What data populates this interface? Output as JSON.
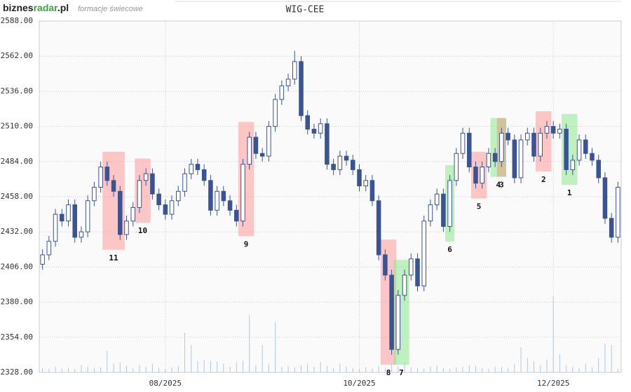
{
  "header": {
    "brand_parts": [
      "biznes",
      "radar",
      ".pl"
    ],
    "subtitle": "formacje świecowe"
  },
  "chart_data": {
    "type": "candlestick",
    "title": "WIG-CEE",
    "open": [
      2408,
      2415,
      2425,
      2445,
      2440,
      2452,
      2428,
      2432,
      2455,
      2465,
      2480,
      2470,
      2462,
      2430,
      2440,
      2450,
      2470,
      2475,
      2460,
      2452,
      2445,
      2455,
      2462,
      2475,
      2482,
      2478,
      2470,
      2448,
      2462,
      2455,
      2448,
      2440,
      2482,
      2502,
      2490,
      2488,
      2510,
      2530,
      2540,
      2545,
      2558,
      2518,
      2508,
      2505,
      2512,
      2482,
      2478,
      2488,
      2485,
      2478,
      2466,
      2470,
      2455,
      2415,
      2400,
      2345,
      2385,
      2400,
      2412,
      2392,
      2440,
      2452,
      2460,
      2436,
      2470,
      2490,
      2505,
      2480,
      2468,
      2480,
      2490,
      2484,
      2505,
      2500,
      2472,
      2500,
      2505,
      2488,
      2505,
      2510,
      2505,
      2508,
      2478,
      2485,
      2500,
      2490,
      2485,
      2472,
      2442,
      2428
    ],
    "high": [
      2419,
      2429,
      2449,
      2449,
      2456,
      2456,
      2436,
      2459,
      2469,
      2484,
      2484,
      2474,
      2466,
      2444,
      2454,
      2474,
      2479,
      2479,
      2464,
      2456,
      2459,
      2466,
      2479,
      2486,
      2486,
      2482,
      2474,
      2466,
      2466,
      2459,
      2452,
      2486,
      2506,
      2506,
      2494,
      2514,
      2534,
      2544,
      2549,
      2566,
      2562,
      2522,
      2512,
      2516,
      2516,
      2486,
      2492,
      2492,
      2489,
      2482,
      2474,
      2474,
      2459,
      2419,
      2404,
      2389,
      2404,
      2416,
      2416,
      2444,
      2456,
      2464,
      2464,
      2474,
      2494,
      2509,
      2509,
      2484,
      2484,
      2494,
      2494,
      2509,
      2509,
      2504,
      2504,
      2509,
      2509,
      2509,
      2514,
      2514,
      2512,
      2512,
      2489,
      2504,
      2504,
      2494,
      2489,
      2476,
      2446,
      2469
    ],
    "low": [
      2404,
      2411,
      2421,
      2436,
      2436,
      2424,
      2424,
      2428,
      2451,
      2461,
      2466,
      2458,
      2426,
      2426,
      2436,
      2446,
      2466,
      2456,
      2448,
      2441,
      2441,
      2451,
      2458,
      2471,
      2474,
      2466,
      2444,
      2444,
      2451,
      2444,
      2436,
      2436,
      2478,
      2486,
      2484,
      2484,
      2506,
      2526,
      2536,
      2541,
      2514,
      2504,
      2501,
      2501,
      2478,
      2474,
      2474,
      2481,
      2474,
      2462,
      2462,
      2451,
      2411,
      2396,
      2341,
      2341,
      2381,
      2396,
      2388,
      2388,
      2436,
      2448,
      2432,
      2432,
      2466,
      2486,
      2476,
      2464,
      2464,
      2476,
      2480,
      2480,
      2496,
      2468,
      2468,
      2496,
      2484,
      2484,
      2501,
      2501,
      2501,
      2474,
      2474,
      2481,
      2486,
      2481,
      2468,
      2438,
      2424,
      2424
    ],
    "close": [
      2415,
      2425,
      2445,
      2440,
      2452,
      2428,
      2432,
      2455,
      2465,
      2480,
      2470,
      2462,
      2430,
      2440,
      2450,
      2470,
      2475,
      2460,
      2452,
      2445,
      2455,
      2462,
      2475,
      2482,
      2478,
      2470,
      2448,
      2462,
      2455,
      2448,
      2440,
      2482,
      2502,
      2490,
      2488,
      2510,
      2530,
      2540,
      2545,
      2558,
      2518,
      2508,
      2505,
      2512,
      2482,
      2478,
      2488,
      2485,
      2478,
      2466,
      2470,
      2455,
      2415,
      2400,
      2345,
      2385,
      2400,
      2412,
      2392,
      2440,
      2452,
      2460,
      2436,
      2470,
      2490,
      2505,
      2480,
      2468,
      2480,
      2490,
      2484,
      2505,
      2500,
      2472,
      2500,
      2505,
      2488,
      2505,
      2510,
      2505,
      2508,
      2478,
      2485,
      2500,
      2490,
      2485,
      2472,
      2442,
      2428,
      2465
    ],
    "volume": [
      6,
      5,
      8,
      5,
      6,
      5,
      10,
      8,
      6,
      7,
      30,
      12,
      14,
      9,
      6,
      10,
      8,
      12,
      6,
      5,
      7,
      9,
      55,
      38,
      16,
      17,
      16,
      15,
      12,
      8,
      14,
      16,
      80,
      10,
      38,
      12,
      70,
      8,
      9,
      7,
      10,
      12,
      8,
      14,
      9,
      6,
      12,
      8,
      6,
      5,
      7,
      5,
      9,
      6,
      12,
      8,
      14,
      7,
      6,
      5,
      8,
      9,
      6,
      5,
      7,
      8,
      10,
      9,
      6,
      5,
      8,
      7,
      6,
      12,
      35,
      20,
      15,
      10,
      18,
      105,
      25,
      10,
      8,
      6,
      12,
      7,
      20,
      40,
      38,
      5
    ],
    "up_color": "#ffffff",
    "down_color": "#3a5493",
    "volume_color": "#a9c9ea",
    "xlim": [
      -0.5,
      89.5
    ],
    "xticks": [
      {
        "value": 19,
        "label": "08/2025"
      },
      {
        "value": 49,
        "label": "10/2025"
      },
      {
        "value": 79,
        "label": "12/2025"
      }
    ],
    "ylim": [
      2328,
      2588
    ],
    "yticks": [
      {
        "value": 2328,
        "label": "2328.00"
      },
      {
        "value": 2354,
        "label": "2354.00"
      },
      {
        "value": 2380,
        "label": "2380.00"
      },
      {
        "value": 2406,
        "label": "2406.00"
      },
      {
        "value": 2432,
        "label": "2432.00"
      },
      {
        "value": 2458,
        "label": "2458.00"
      },
      {
        "value": 2484,
        "label": "2484.00"
      },
      {
        "value": 2510,
        "label": "2510.00"
      },
      {
        "value": 2536,
        "label": "2536.00"
      },
      {
        "value": 2562,
        "label": "2562.00"
      },
      {
        "value": 2588,
        "label": "2588.00"
      }
    ],
    "grid": true,
    "patterns": [
      {
        "label": "11",
        "from": 10,
        "to": 12,
        "color": "#ff9a9a"
      },
      {
        "label": "10",
        "from": 15,
        "to": 16,
        "color": "#ff9a9a"
      },
      {
        "label": "9",
        "from": 31,
        "to": 32,
        "color": "#ff9a9a"
      },
      {
        "label": "8",
        "from": 53,
        "to": 54,
        "color": "#ff9a9a"
      },
      {
        "label": "7",
        "from": 55,
        "to": 56,
        "color": "#8ee88e"
      },
      {
        "label": "6",
        "from": 63,
        "to": 63,
        "color": "#8ee88e"
      },
      {
        "label": "5",
        "from": 67,
        "to": 68,
        "color": "#ff9a9a"
      },
      {
        "label": "4",
        "from": 70,
        "to": 71,
        "color": "#8ee88e"
      },
      {
        "label": "3",
        "from": 71,
        "to": 71,
        "color": "#e0a080"
      },
      {
        "label": "2",
        "from": 77,
        "to": 78,
        "color": "#ff9a9a"
      },
      {
        "label": "1",
        "from": 81,
        "to": 82,
        "color": "#8ee88e"
      }
    ]
  }
}
